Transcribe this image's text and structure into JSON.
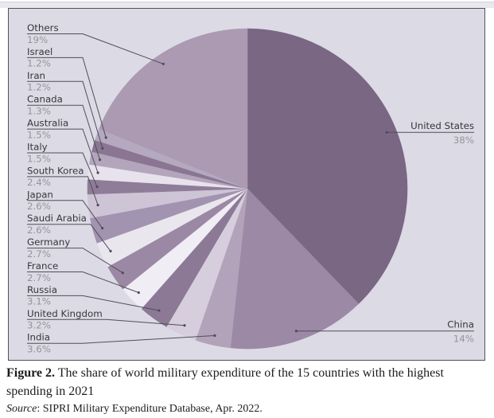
{
  "chart_data": {
    "type": "pie",
    "title": "Figure 2. The share of world military expenditure of the 15 countries with the highest spending in 2021",
    "start_angle": "12-oclock",
    "direction": "clockwise",
    "legend_position": "callout-labels",
    "panel_background": "#dcdbe5",
    "panel_border_color": "#52515c",
    "leader_line_color": "#504e58",
    "country_label_color": "#38363c",
    "pct_label_color": "#96939b",
    "slices": [
      {
        "label": "United States",
        "value": 38,
        "pct_label": "38%",
        "color": "#7a6784",
        "label_side": "right"
      },
      {
        "label": "China",
        "value": 14,
        "pct_label": "14%",
        "color": "#9c89a5",
        "label_side": "right"
      },
      {
        "label": "India",
        "value": 3.6,
        "pct_label": "3.6%",
        "color": "#b2a3ba",
        "label_side": "left"
      },
      {
        "label": "United Kingdom",
        "value": 3.2,
        "pct_label": "3.2%",
        "color": "#d6cedd",
        "label_side": "left"
      },
      {
        "label": "Russia",
        "value": 3.1,
        "pct_label": "3.1%",
        "color": "#8c7996",
        "label_side": "left"
      },
      {
        "label": "France",
        "value": 2.7,
        "pct_label": "2.7%",
        "color": "#f0edf4",
        "label_side": "left"
      },
      {
        "label": "Germany",
        "value": 2.7,
        "pct_label": "2.7%",
        "color": "#9b88a5",
        "label_side": "left"
      },
      {
        "label": "Saudi Arabia",
        "value": 2.6,
        "pct_label": "2.6%",
        "color": "#eae6ee",
        "label_side": "left"
      },
      {
        "label": "Japan",
        "value": 2.6,
        "pct_label": "2.6%",
        "color": "#a293b0",
        "label_side": "left"
      },
      {
        "label": "South Korea",
        "value": 2.4,
        "pct_label": "2.4%",
        "color": "#cdc4d6",
        "label_side": "left"
      },
      {
        "label": "Italy",
        "value": 1.5,
        "pct_label": "1.5%",
        "color": "#8f7c99",
        "label_side": "left"
      },
      {
        "label": "Australia",
        "value": 1.5,
        "pct_label": "1.5%",
        "color": "#e7e2ec",
        "label_side": "left"
      },
      {
        "label": "Canada",
        "value": 1.3,
        "pct_label": "1.3%",
        "color": "#b3a5bc",
        "label_side": "left"
      },
      {
        "label": "Iran",
        "value": 1.2,
        "pct_label": "1.2%",
        "color": "#8a7693",
        "label_side": "left"
      },
      {
        "label": "Israel",
        "value": 1.2,
        "pct_label": "1.2%",
        "color": "#b5a9bf",
        "label_side": "left"
      },
      {
        "label": "Others",
        "value": 19,
        "pct_label": "19%",
        "color": "#ab9ab2",
        "label_side": "left"
      }
    ]
  },
  "caption": {
    "figure_label": "Figure 2.",
    "text": " The share of world military expenditure of the 15 countries with the highest spending in 2021"
  },
  "source_line": {
    "label": "Source",
    "text": ": SIPRI Military Expenditure Database, Apr. 2022."
  }
}
